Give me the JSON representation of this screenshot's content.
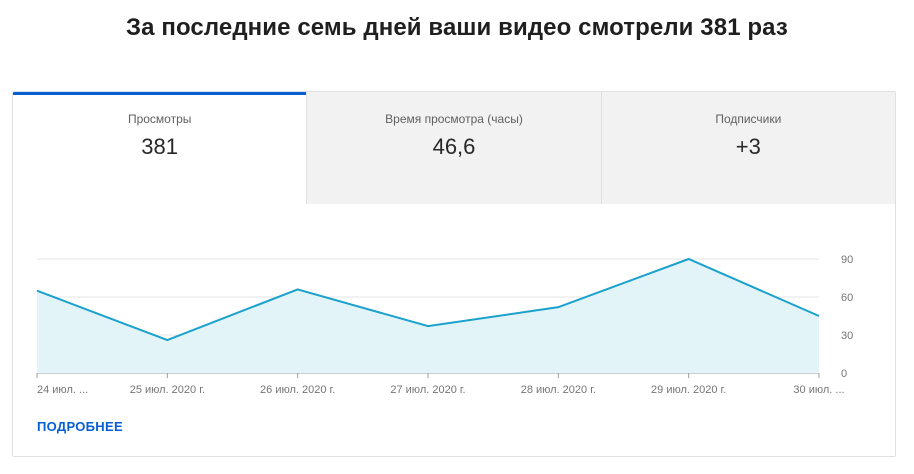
{
  "headline": "За последние семь дней ваши видео смотрели 381 раз",
  "tabs": [
    {
      "label": "Просмотры",
      "value": "381",
      "active": true
    },
    {
      "label": "Время просмотра (часы)",
      "value": "46,6",
      "active": false
    },
    {
      "label": "Подписчики",
      "value": "+3",
      "active": false
    }
  ],
  "more_link": "ПОДРОБНЕЕ",
  "colors": {
    "accent": "#065fd4",
    "line": "#1aa1cc",
    "area": "#e3f4f9"
  },
  "chart_data": {
    "type": "area",
    "x": [
      "24 июл. ...",
      "25 июл. 2020 г.",
      "26 июл. 2020 г.",
      "27 июл. 2020 г.",
      "28 июл. 2020 г.",
      "29 июл. 2020 г.",
      "30 июл. ..."
    ],
    "series": [
      {
        "values": [
          65,
          26,
          66,
          37,
          52,
          90,
          45
        ]
      }
    ],
    "y_ticks": [
      "0",
      "30",
      "60",
      "90"
    ],
    "ylim": [
      0,
      90
    ],
    "grid": true,
    "yaxis_position": "right"
  }
}
